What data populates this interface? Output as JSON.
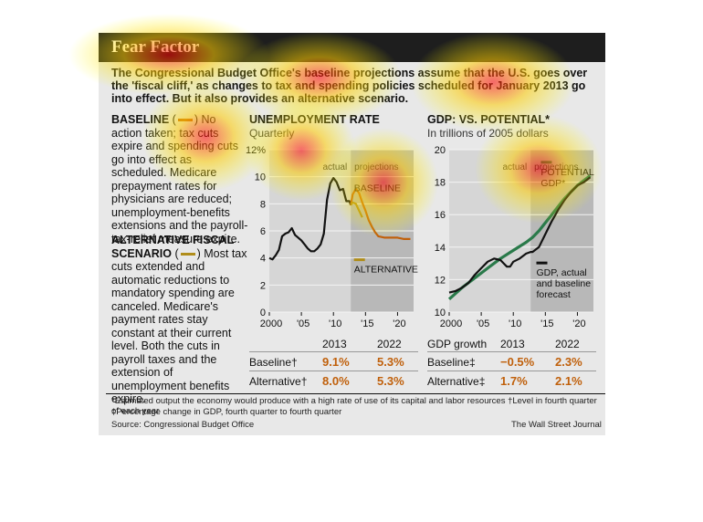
{
  "header": {
    "title": "Fear Factor",
    "intro": "The Congressional Budget Office's baseline projections assume that the U.S. goes over the 'fiscal cliff,' as changes to tax and spending policies scheduled for January 2013 go into effect. But it also provides an alternative scenario."
  },
  "sidebar": {
    "baseline_head": "BASELINE",
    "baseline_text": "No action taken; tax cuts expire and spending cuts go into effect as scheduled. Medicare prepayment rates for physicians are reduced; unemployment-benefits extensions and the payroll-tax-relief measure expire.",
    "alt_head": "ALTERNATIVE FISCAL SCENARIO",
    "alt_text": "Most tax cuts extended and automatic reductions to mandatory spending are canceled. Medicare's payment rates stay constant at their current level. Both the cuts in payroll taxes and the extension of unemployment benefits expire."
  },
  "colors": {
    "baseline": "#c0600b",
    "alternative": "#b08d1a",
    "gdp_potential": "#2a7a4a",
    "actual": "#111111"
  },
  "chart_data": [
    {
      "type": "line",
      "title": "UNEMPLOYMENT RATE",
      "subtitle": "Quarterly",
      "ylim": [
        0,
        12
      ],
      "yticks": [
        0,
        2,
        4,
        6,
        8,
        10,
        12
      ],
      "ytick_labels": [
        "0",
        "2",
        "4",
        "6",
        "8",
        "10",
        "12%"
      ],
      "xlim": [
        2000,
        2022.5
      ],
      "xticks": [
        2000,
        2005,
        2010,
        2015,
        2020
      ],
      "xtick_labels": [
        "2000",
        "'05",
        "'10",
        "'15",
        "'20"
      ],
      "region_labels": [
        "actual",
        "projections"
      ],
      "projection_start": 2012.7,
      "series": [
        {
          "name": "actual",
          "points": [
            [
              2000,
              4.0
            ],
            [
              2000.5,
              3.9
            ],
            [
              2001,
              4.2
            ],
            [
              2001.5,
              4.6
            ],
            [
              2002,
              5.6
            ],
            [
              2002.5,
              5.8
            ],
            [
              2003,
              5.9
            ],
            [
              2003.5,
              6.2
            ],
            [
              2004,
              5.7
            ],
            [
              2004.5,
              5.5
            ],
            [
              2005,
              5.3
            ],
            [
              2005.5,
              5.0
            ],
            [
              2006,
              4.7
            ],
            [
              2006.5,
              4.5
            ],
            [
              2007,
              4.5
            ],
            [
              2007.5,
              4.7
            ],
            [
              2008,
              5.0
            ],
            [
              2008.5,
              5.8
            ],
            [
              2009,
              8.3
            ],
            [
              2009.5,
              9.5
            ],
            [
              2010,
              9.9
            ],
            [
              2010.5,
              9.6
            ],
            [
              2011,
              9.0
            ],
            [
              2011.5,
              9.1
            ],
            [
              2012,
              8.2
            ],
            [
              2012.5,
              8.2
            ],
            [
              2012.7,
              7.9
            ]
          ]
        },
        {
          "name": "BASELINE",
          "points": [
            [
              2012.7,
              7.9
            ],
            [
              2013,
              8.7
            ],
            [
              2013.5,
              9.1
            ],
            [
              2014,
              8.8
            ],
            [
              2014.5,
              8.1
            ],
            [
              2015,
              7.5
            ],
            [
              2015.5,
              6.8
            ],
            [
              2016,
              6.3
            ],
            [
              2016.5,
              5.9
            ],
            [
              2017,
              5.6
            ],
            [
              2018,
              5.5
            ],
            [
              2019,
              5.5
            ],
            [
              2020,
              5.5
            ],
            [
              2021,
              5.4
            ],
            [
              2022,
              5.4
            ]
          ]
        },
        {
          "name": "ALTERNATIVE",
          "points": [
            [
              2012.7,
              7.9
            ],
            [
              2013,
              8.1
            ],
            [
              2013.5,
              8.0
            ],
            [
              2014,
              7.5
            ],
            [
              2014.5,
              7.0
            ]
          ]
        }
      ]
    },
    {
      "type": "line",
      "title": "GDP: VS. POTENTIAL*",
      "subtitle": "In trillions of 2005 dollars",
      "ylim": [
        10,
        20
      ],
      "yticks": [
        10,
        12,
        14,
        16,
        18,
        20
      ],
      "xlim": [
        2000,
        2022.5
      ],
      "xticks": [
        2000,
        2005,
        2010,
        2015,
        2020
      ],
      "xtick_labels": [
        "2000",
        "'05",
        "'10",
        "'15",
        "'20"
      ],
      "region_labels": [
        "actual",
        "projections"
      ],
      "projection_start": 2012.7,
      "series": [
        {
          "name": "POTENTIAL GDP*",
          "points": [
            [
              2000,
              10.8
            ],
            [
              2002,
              11.5
            ],
            [
              2004,
              12.1
            ],
            [
              2006,
              12.7
            ],
            [
              2008,
              13.3
            ],
            [
              2010,
              13.8
            ],
            [
              2012,
              14.3
            ],
            [
              2013,
              14.6
            ],
            [
              2014,
              15.0
            ],
            [
              2015,
              15.5
            ],
            [
              2016,
              16.0
            ],
            [
              2017,
              16.5
            ],
            [
              2018,
              17.0
            ],
            [
              2019,
              17.4
            ],
            [
              2020,
              17.8
            ],
            [
              2021,
              18.1
            ],
            [
              2022,
              18.4
            ]
          ]
        },
        {
          "name": "GDP, actual and baseline forecast",
          "points": [
            [
              2000,
              11.2
            ],
            [
              2001,
              11.3
            ],
            [
              2002,
              11.5
            ],
            [
              2003,
              11.8
            ],
            [
              2004,
              12.3
            ],
            [
              2005,
              12.7
            ],
            [
              2006,
              13.1
            ],
            [
              2007,
              13.3
            ],
            [
              2008,
              13.2
            ],
            [
              2008.5,
              13.0
            ],
            [
              2009,
              12.8
            ],
            [
              2009.5,
              12.8
            ],
            [
              2010,
              13.1
            ],
            [
              2011,
              13.3
            ],
            [
              2012,
              13.6
            ],
            [
              2012.7,
              13.7
            ],
            [
              2013,
              13.7
            ],
            [
              2014,
              14.0
            ],
            [
              2015,
              14.8
            ],
            [
              2016,
              15.6
            ],
            [
              2017,
              16.3
            ],
            [
              2018,
              16.9
            ],
            [
              2019,
              17.4
            ],
            [
              2020,
              17.8
            ],
            [
              2021,
              18.0
            ],
            [
              2022,
              18.3
            ]
          ]
        }
      ]
    },
    {
      "type": "table",
      "columns": [
        "",
        "2013",
        "2022"
      ],
      "rows": [
        {
          "label": "Baseline†",
          "values": [
            "9.1%",
            "5.3%"
          ]
        },
        {
          "label": "Alternative†",
          "values": [
            "8.0%",
            "5.3%"
          ]
        }
      ]
    },
    {
      "type": "table",
      "columns": [
        "GDP growth",
        "2013",
        "2022"
      ],
      "rows": [
        {
          "label": "Baseline‡",
          "values": [
            "−0.5%",
            "2.3%"
          ]
        },
        {
          "label": "Alternative‡",
          "values": [
            "1.7%",
            "2.1%"
          ]
        }
      ]
    }
  ],
  "labels": {
    "baseline_line": "BASELINE",
    "alternative_line": "ALTERNATIVE",
    "potential": "POTENTIAL GDP*",
    "gdp_actual": "GDP, actual and baseline forecast",
    "actual": "actual",
    "projections": "projections"
  },
  "footer": {
    "note1": "*Estimated output the economy would produce with a high rate of use of its capital and labor resources   †Level in fourth quarter of each year",
    "note2": "‡Percentage change in GDP, fourth quarter to fourth quarter",
    "source": "Source: Congressional Budget Office",
    "credit": "The Wall Street Journal"
  }
}
